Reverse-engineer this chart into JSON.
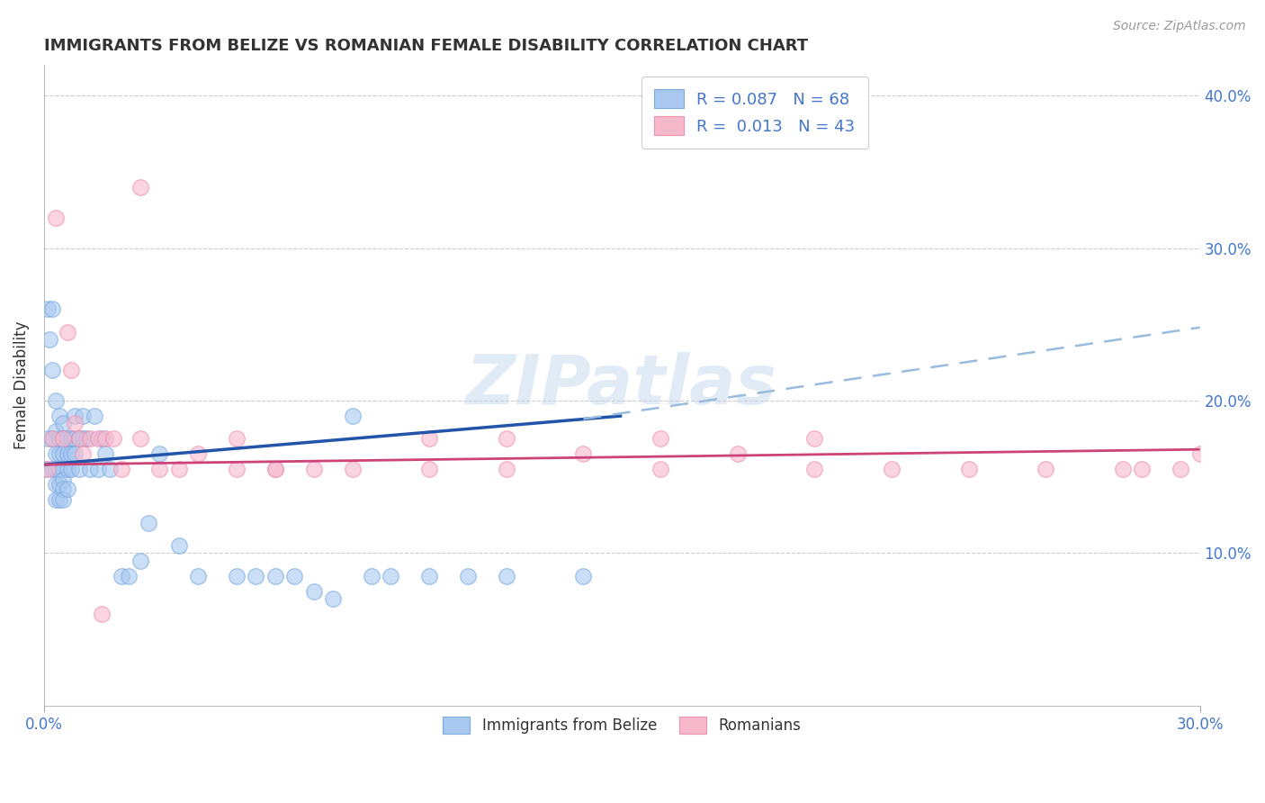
{
  "title": "IMMIGRANTS FROM BELIZE VS ROMANIAN FEMALE DISABILITY CORRELATION CHART",
  "source": "Source: ZipAtlas.com",
  "ylabel": "Female Disability",
  "watermark": "ZIPatlas",
  "legend_r1_text": "R = 0.087   N = 68",
  "legend_r2_text": "R =  0.013   N = 43",
  "blue_fill": "#A8C8F0",
  "blue_edge": "#7AAAE0",
  "pink_fill": "#F8B8CC",
  "pink_edge": "#F090B0",
  "blue_line_color": "#2255AA",
  "pink_line_color": "#CC4477",
  "dashed_line_color": "#99BBDD",
  "title_color": "#333333",
  "axis_color": "#4477CC",
  "grid_color": "#CCCCCC",
  "source_color": "#999999",
  "xlim": [
    0.0,
    0.3
  ],
  "ylim": [
    0.0,
    0.42
  ],
  "right_ytick_vals": [
    0.1,
    0.2,
    0.3,
    0.4
  ],
  "right_ytick_labels": [
    "10.0%",
    "20.0%",
    "30.0%",
    "40.0%"
  ],
  "belize_x": [
    0.0005,
    0.001,
    0.001,
    0.0015,
    0.002,
    0.002,
    0.002,
    0.002,
    0.003,
    0.003,
    0.003,
    0.003,
    0.003,
    0.003,
    0.004,
    0.004,
    0.004,
    0.004,
    0.004,
    0.004,
    0.005,
    0.005,
    0.005,
    0.005,
    0.005,
    0.005,
    0.005,
    0.006,
    0.006,
    0.006,
    0.006,
    0.007,
    0.007,
    0.007,
    0.008,
    0.008,
    0.008,
    0.009,
    0.009,
    0.01,
    0.01,
    0.011,
    0.012,
    0.013,
    0.014,
    0.015,
    0.016,
    0.017,
    0.02,
    0.022,
    0.025,
    0.027,
    0.03,
    0.035,
    0.04,
    0.05,
    0.055,
    0.06,
    0.065,
    0.07,
    0.075,
    0.08,
    0.085,
    0.09,
    0.1,
    0.11,
    0.12,
    0.14
  ],
  "belize_y": [
    0.155,
    0.26,
    0.175,
    0.24,
    0.26,
    0.22,
    0.175,
    0.155,
    0.2,
    0.18,
    0.165,
    0.155,
    0.145,
    0.135,
    0.19,
    0.175,
    0.165,
    0.155,
    0.145,
    0.135,
    0.185,
    0.175,
    0.165,
    0.155,
    0.148,
    0.142,
    0.135,
    0.175,
    0.165,
    0.155,
    0.142,
    0.175,
    0.165,
    0.155,
    0.19,
    0.175,
    0.165,
    0.175,
    0.155,
    0.19,
    0.175,
    0.175,
    0.155,
    0.19,
    0.155,
    0.175,
    0.165,
    0.155,
    0.085,
    0.085,
    0.095,
    0.12,
    0.165,
    0.105,
    0.085,
    0.085,
    0.085,
    0.085,
    0.085,
    0.075,
    0.07,
    0.19,
    0.085,
    0.085,
    0.085,
    0.085,
    0.085,
    0.085
  ],
  "romanian_x": [
    0.001,
    0.002,
    0.003,
    0.005,
    0.006,
    0.007,
    0.008,
    0.009,
    0.01,
    0.012,
    0.014,
    0.016,
    0.018,
    0.02,
    0.025,
    0.03,
    0.04,
    0.05,
    0.06,
    0.07,
    0.08,
    0.1,
    0.12,
    0.14,
    0.16,
    0.18,
    0.2,
    0.22,
    0.24,
    0.26,
    0.28,
    0.285,
    0.295,
    0.3,
    0.16,
    0.2,
    0.1,
    0.12,
    0.06,
    0.05,
    0.035,
    0.025,
    0.015
  ],
  "romanian_y": [
    0.155,
    0.175,
    0.32,
    0.175,
    0.245,
    0.22,
    0.185,
    0.175,
    0.165,
    0.175,
    0.175,
    0.175,
    0.175,
    0.155,
    0.175,
    0.155,
    0.165,
    0.155,
    0.155,
    0.155,
    0.155,
    0.155,
    0.175,
    0.165,
    0.155,
    0.165,
    0.155,
    0.155,
    0.155,
    0.155,
    0.155,
    0.155,
    0.155,
    0.165,
    0.175,
    0.175,
    0.175,
    0.155,
    0.155,
    0.175,
    0.155,
    0.34,
    0.06
  ],
  "blue_trend_x": [
    0.0,
    0.15
  ],
  "blue_trend_y": [
    0.158,
    0.19
  ],
  "dashed_trend_x": [
    0.14,
    0.3
  ],
  "dashed_trend_y": [
    0.188,
    0.248
  ],
  "pink_trend_x": [
    0.0,
    0.3
  ],
  "pink_trend_y": [
    0.158,
    0.168
  ]
}
